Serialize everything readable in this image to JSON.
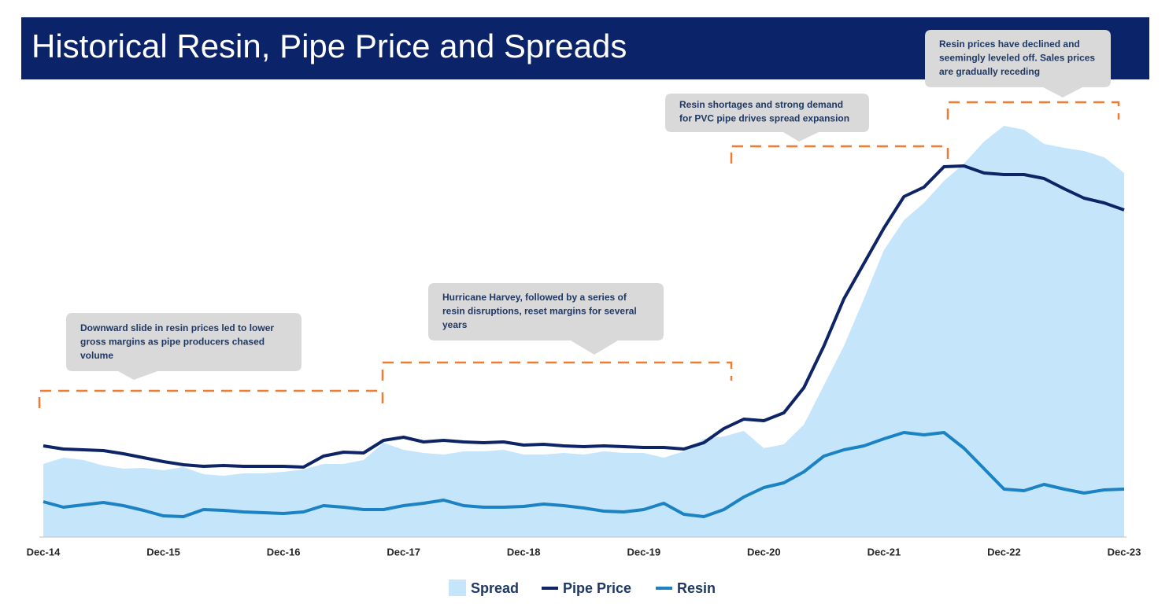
{
  "chart_data": {
    "type": "area-line",
    "title": "Historical Resin, Pipe Price and Spreads",
    "categories": [
      "Dec-14",
      null,
      null,
      null,
      null,
      null,
      "Dec-15",
      null,
      null,
      null,
      null,
      null,
      "Dec-16",
      null,
      null,
      null,
      null,
      null,
      "Dec-17",
      null,
      null,
      null,
      null,
      null,
      "Dec-18",
      null,
      null,
      null,
      null,
      null,
      "Dec-19",
      null,
      null,
      null,
      null,
      null,
      "Dec-20",
      null,
      null,
      null,
      null,
      null,
      "Dec-21",
      null,
      null,
      null,
      null,
      null,
      "Dec-22",
      null,
      null,
      null,
      null,
      null,
      "Dec-23"
    ],
    "ylim": [
      0,
      110
    ],
    "series": [
      {
        "name": "Spread",
        "color": "#c5e5fb",
        "style": "area",
        "values": [
          18.6,
          20.2,
          19.6,
          18.2,
          17.4,
          17.6,
          17,
          17.8,
          16,
          15.6,
          16.2,
          16.2,
          16.6,
          17.2,
          18.6,
          18.6,
          19.6,
          24,
          22.2,
          21.4,
          21,
          21.8,
          21.8,
          22.2,
          21,
          21,
          21.4,
          21,
          21.8,
          21.4,
          21.4,
          20.2,
          21.8,
          25,
          25.6,
          27,
          22.6,
          23.6,
          28.6,
          38.6,
          48.6,
          60.6,
          73,
          80.6,
          85,
          90.6,
          95,
          100.6,
          104.6,
          103.6,
          100,
          99,
          98.2,
          96.6,
          92.6
        ]
      },
      {
        "name": "Pipe Price",
        "color": "#0d2466",
        "style": "line",
        "values": [
          23.2,
          22.4,
          22.2,
          22,
          21.2,
          20.2,
          19.2,
          18.4,
          18,
          18.2,
          18,
          18,
          18,
          17.8,
          20.6,
          21.6,
          21.4,
          24.6,
          25.4,
          24.2,
          24.6,
          24.2,
          24,
          24.2,
          23.4,
          23.6,
          23.2,
          23,
          23.2,
          23,
          22.8,
          22.8,
          22.4,
          24,
          27.6,
          30,
          29.6,
          31.6,
          38,
          48.6,
          60.6,
          69.6,
          78.6,
          86.6,
          89,
          94.2,
          94.4,
          92.6,
          92.2,
          92.2,
          91.2,
          88.6,
          86.2,
          85,
          83.2
        ]
      },
      {
        "name": "Resin",
        "color": "#1b82c4",
        "style": "line",
        "values": [
          9,
          7.6,
          8.2,
          8.8,
          8,
          6.8,
          5.4,
          5.2,
          7,
          6.8,
          6.4,
          6.2,
          6,
          6.4,
          8,
          7.6,
          7,
          7,
          8,
          8.6,
          9.4,
          8,
          7.6,
          7.6,
          7.8,
          8.4,
          8,
          7.4,
          6.6,
          6.4,
          7,
          8.6,
          5.8,
          5.2,
          7,
          10.2,
          12.6,
          13.8,
          16.6,
          20.6,
          22.2,
          23.2,
          25,
          26.6,
          26,
          26.6,
          22.6,
          17.4,
          12.2,
          11.8,
          13.4,
          12.2,
          11.2,
          12,
          12.2
        ]
      }
    ],
    "annotations": [
      {
        "lines": [
          "Downward slide in resin prices led to lower",
          "gross margins as pipe producers chased",
          "volume"
        ]
      },
      {
        "lines": [
          "Hurricane Harvey, followed by a series of",
          "resin disruptions, reset margins for several",
          "years"
        ]
      },
      {
        "lines": [
          "Resin shortages and strong demand",
          "for PVC pipe drives spread expansion"
        ]
      },
      {
        "lines": [
          "Resin prices have declined and",
          "seemingly leveled off. Sales prices",
          "are gradually receding"
        ]
      }
    ]
  }
}
